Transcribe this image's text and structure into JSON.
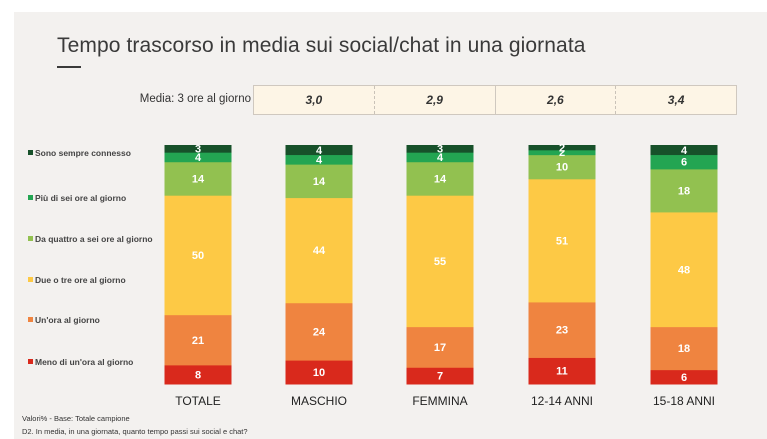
{
  "title": "Tempo trascorso in media sui social/chat in una giornata",
  "average_row": {
    "label": "Media: 3 ore al giorno",
    "values": [
      "3,0",
      "2,9",
      "2,6",
      "3,4"
    ]
  },
  "footnotes": {
    "base": "Valori% - Base: Totale campione",
    "question": "D2. In media, in una giornata, quanto tempo passi sui social e chat?"
  },
  "chart_data": {
    "type": "bar",
    "stacked": true,
    "title": "Tempo trascorso in media sui social/chat in una giornata",
    "xlabel": "",
    "ylabel": "",
    "ylim": [
      0,
      100
    ],
    "legend_position": "left",
    "categories": [
      "TOTALE",
      "MASCHIO",
      "FEMMINA",
      "12-14 ANNI",
      "15-18 ANNI"
    ],
    "series": [
      {
        "name": "Meno di un'ora al giorno",
        "color": "#d9291c",
        "values": [
          8,
          10,
          7,
          11,
          6
        ]
      },
      {
        "name": "Un'ora al giorno",
        "color": "#ef8440",
        "values": [
          21,
          24,
          17,
          23,
          18
        ]
      },
      {
        "name": "Due o tre ore al giorno",
        "color": "#fdc945",
        "values": [
          50,
          44,
          55,
          51,
          48
        ]
      },
      {
        "name": "Da quattro a sei ore al giorno",
        "color": "#92c150",
        "values": [
          14,
          14,
          14,
          10,
          18
        ]
      },
      {
        "name": "Più di sei ore al giorno",
        "color": "#23a552",
        "values": [
          4,
          4,
          4,
          2,
          6
        ]
      },
      {
        "name": "Sono sempre connesso",
        "color": "#17512a",
        "values": [
          3,
          4,
          3,
          2,
          4
        ]
      }
    ]
  },
  "legend": [
    {
      "label": "Sono sempre connesso",
      "color": "#17512a"
    },
    {
      "label": "Più di sei ore al giorno",
      "color": "#23a552"
    },
    {
      "label": "Da quattro a sei ore al giorno",
      "color": "#92c150"
    },
    {
      "label": "Due o tre ore al giorno",
      "color": "#fdc945"
    },
    {
      "label": "Un'ora al giorno",
      "color": "#ef8440"
    },
    {
      "label": "Meno di un'ora al giorno",
      "color": "#d9291c"
    }
  ]
}
